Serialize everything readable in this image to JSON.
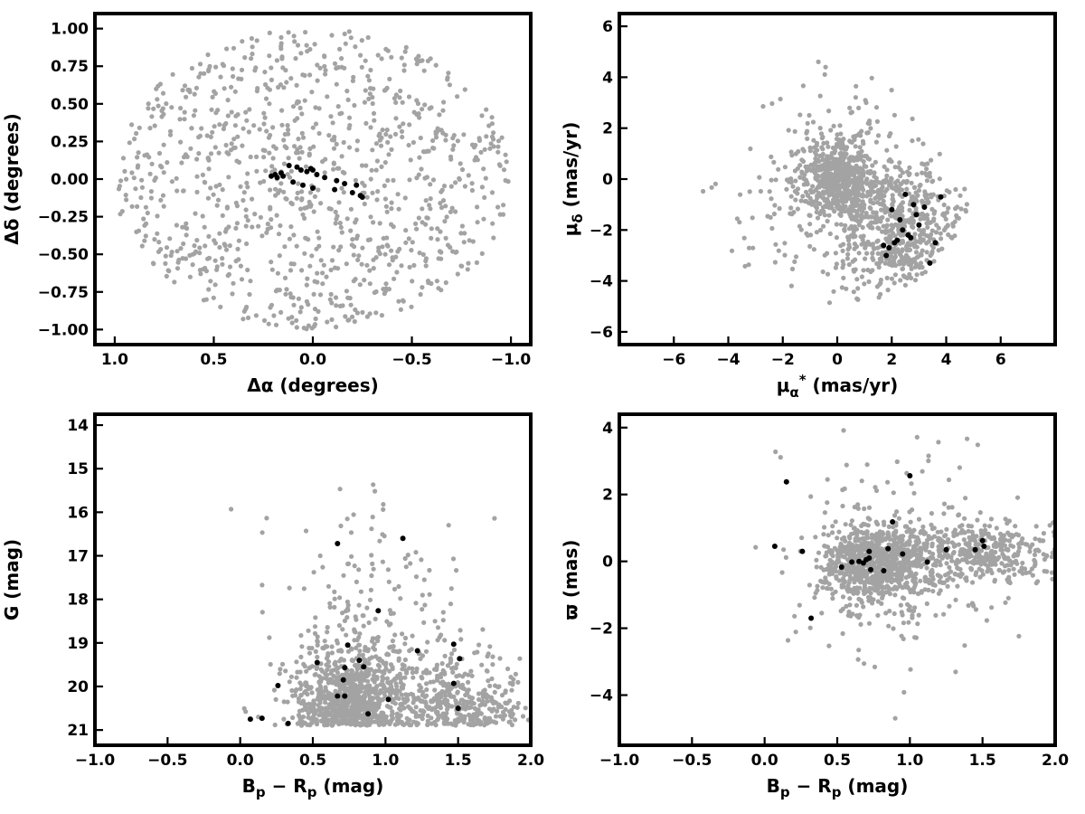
{
  "colors": {
    "field": "#a3a3a3",
    "members": "#000000"
  },
  "chart_data": [
    {
      "type": "scatter",
      "xlabel": "Δα (degrees)",
      "ylabel": "Δδ (degrees)",
      "xlim": [
        1.1,
        -1.1
      ],
      "ylim": [
        -1.1,
        1.1
      ],
      "xticks": [
        1.0,
        0.5,
        0.0,
        -0.5,
        -1.0
      ],
      "xtick_labels": [
        "1.0",
        "0.5",
        "0.0",
        "−0.5",
        "−1.0"
      ],
      "yticks": [
        -1.0,
        -0.75,
        -0.5,
        -0.25,
        0.0,
        0.25,
        0.5,
        0.75,
        1.0
      ],
      "ytick_labels": [
        "−1.00",
        "−0.75",
        "−0.50",
        "−0.25",
        "0.00",
        "0.25",
        "0.50",
        "0.75",
        "1.00"
      ],
      "grid": false,
      "field_distribution": "uniform disk of radius 1.0 deg centered at (0,0)",
      "field_count": 1000,
      "members": {
        "x": [
          0.19,
          0.16,
          0.12,
          0.08,
          0.06,
          0.03,
          0.01,
          0.0,
          -0.02,
          -0.06,
          -0.12,
          -0.16,
          -0.22,
          -0.24,
          0.15,
          0.1,
          0.05,
          0.0,
          -0.11,
          -0.25,
          0.21,
          0.18,
          -0.2
        ],
        "y": [
          0.03,
          0.04,
          0.09,
          0.08,
          0.06,
          0.05,
          0.07,
          0.06,
          0.03,
          0.01,
          -0.01,
          -0.03,
          -0.04,
          -0.11,
          0.02,
          -0.02,
          -0.04,
          -0.06,
          -0.07,
          -0.12,
          0.02,
          0.01,
          -0.09
        ]
      }
    },
    {
      "type": "scatter",
      "xlabel": "μα* (mas/yr)",
      "ylabel": "μδ (mas/yr)",
      "xlim": [
        -8,
        8
      ],
      "ylim": [
        -6.5,
        6.5
      ],
      "xticks": [
        -6,
        -4,
        -2,
        0,
        2,
        4,
        6
      ],
      "xtick_labels": [
        "−6",
        "−4",
        "−2",
        "0",
        "2",
        "4",
        "6"
      ],
      "yticks": [
        -6,
        -4,
        -2,
        0,
        2,
        4,
        6
      ],
      "ytick_labels": [
        "−6",
        "−4",
        "−2",
        "0",
        "2",
        "4",
        "6"
      ],
      "grid": false,
      "field_count": 1300,
      "members": {
        "x": [
          2.0,
          2.5,
          2.8,
          3.2,
          2.1,
          1.7,
          1.8,
          2.2,
          2.7,
          3.6,
          3.4,
          2.4,
          2.9,
          3.8,
          1.9,
          3.0,
          2.6,
          2.3
        ],
        "y": [
          -1.2,
          -0.6,
          -1.0,
          -1.1,
          -2.5,
          -2.6,
          -3.0,
          -2.4,
          -2.3,
          -2.5,
          -3.3,
          -2.0,
          -1.4,
          -0.7,
          -2.7,
          -1.8,
          -2.2,
          -1.6
        ]
      }
    },
    {
      "type": "scatter",
      "xlabel": "Bp − Rp (mag)",
      "ylabel": "G (mag)",
      "xlim": [
        -1.0,
        2.0
      ],
      "ylim": [
        21.35,
        13.75
      ],
      "xticks": [
        -1.0,
        -0.5,
        0.0,
        0.5,
        1.0,
        1.5,
        2.0
      ],
      "xtick_labels": [
        "−1.0",
        "−0.5",
        "0.0",
        "0.5",
        "1.0",
        "1.5",
        "2.0"
      ],
      "yticks": [
        14,
        15,
        16,
        17,
        18,
        19,
        20,
        21
      ],
      "ytick_labels": [
        "14",
        "15",
        "16",
        "17",
        "18",
        "19",
        "20",
        "21"
      ],
      "grid": false,
      "field_count": 1400,
      "members": {
        "x": [
          0.07,
          0.15,
          0.33,
          0.26,
          0.67,
          0.72,
          0.71,
          0.72,
          0.74,
          0.82,
          0.85,
          0.88,
          0.53,
          1.02,
          1.22,
          1.47,
          1.5,
          1.51,
          1.47,
          0.95,
          0.67,
          1.12
        ],
        "y": [
          20.75,
          20.73,
          20.85,
          19.98,
          20.22,
          20.22,
          19.85,
          19.57,
          19.05,
          19.4,
          19.55,
          20.63,
          19.45,
          20.3,
          19.18,
          19.93,
          20.5,
          19.36,
          19.03,
          18.26,
          16.72,
          16.6
        ]
      }
    },
    {
      "type": "scatter",
      "xlabel": "Bp − Rp (mag)",
      "ylabel": "ϖ (mas)",
      "xlim": [
        -1.0,
        2.0
      ],
      "ylim": [
        -5.5,
        4.4
      ],
      "xticks": [
        -1.0,
        -0.5,
        0.0,
        0.5,
        1.0,
        1.5,
        2.0
      ],
      "xtick_labels": [
        "−1.0",
        "−0.5",
        "0.0",
        "0.5",
        "1.0",
        "1.5",
        "2.0"
      ],
      "yticks": [
        -4,
        -2,
        0,
        2,
        4
      ],
      "ytick_labels": [
        "−4",
        "−2",
        "0",
        "2",
        "4"
      ],
      "grid": false,
      "field_count": 1400,
      "members": {
        "x": [
          0.07,
          0.15,
          0.26,
          0.32,
          0.53,
          0.65,
          0.68,
          0.72,
          0.72,
          0.73,
          0.82,
          0.85,
          0.88,
          0.95,
          1.0,
          1.12,
          1.25,
          1.45,
          1.5,
          1.51,
          0.7,
          0.6
        ],
        "y": [
          0.45,
          2.38,
          0.3,
          -1.7,
          -0.17,
          0.0,
          -0.05,
          0.3,
          0.1,
          -0.25,
          -0.28,
          0.38,
          1.18,
          0.22,
          2.56,
          -0.02,
          0.35,
          0.35,
          0.62,
          0.45,
          0.05,
          -0.02
        ]
      }
    }
  ]
}
